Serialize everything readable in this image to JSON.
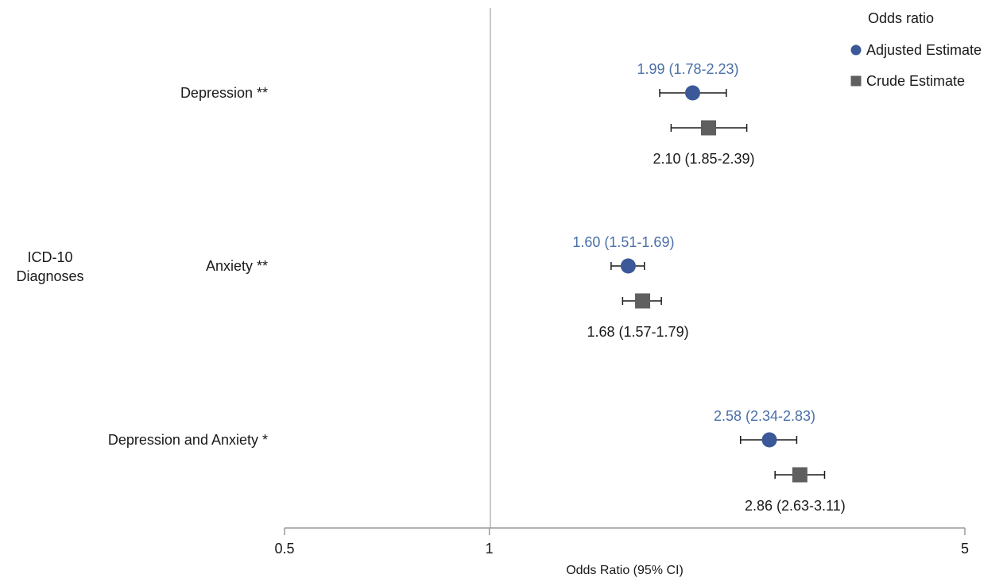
{
  "chart_data": {
    "type": "forest",
    "title": "",
    "xlabel": "Odds Ratio (95% CI)",
    "ylabel": "ICD-10\nDiagnoses",
    "x_scale": "log",
    "xlim": [
      0.5,
      5
    ],
    "x_ticks": [
      "0.5",
      "1",
      "5"
    ],
    "reference_line": 1,
    "grid": false,
    "legend": {
      "title": "Odds ratio",
      "position": "top-right",
      "entries": [
        {
          "name": "Adjusted Estimate",
          "marker": "circle",
          "color": "#3b5998"
        },
        {
          "name": "Crude Estimate",
          "marker": "square",
          "color": "#5f5f5f"
        }
      ]
    },
    "categories": [
      "Depression **",
      "Anxiety **",
      "Depression and Anxiety *"
    ],
    "series": [
      {
        "name": "Adjusted Estimate",
        "marker": "circle",
        "color": "#3b5998",
        "label_color": "#4a6fa8",
        "estimates": [
          1.99,
          1.6,
          2.58
        ],
        "ci_low": [
          1.78,
          1.51,
          2.34
        ],
        "ci_high": [
          2.23,
          1.69,
          2.83
        ],
        "labels": [
          "1.99 (1.78-2.23)",
          "1.60 (1.51-1.69)",
          "2.58 (2.34-2.83)"
        ]
      },
      {
        "name": "Crude Estimate",
        "marker": "square",
        "color": "#5f5f5f",
        "label_color": "#1a1a1a",
        "estimates": [
          2.1,
          1.68,
          2.86
        ],
        "ci_low": [
          1.85,
          1.57,
          2.63
        ],
        "ci_high": [
          2.39,
          1.79,
          3.11
        ],
        "labels": [
          "2.10 (1.85-2.39)",
          "1.68 (1.57-1.79)",
          "2.86 (2.63-3.11)"
        ]
      }
    ]
  }
}
